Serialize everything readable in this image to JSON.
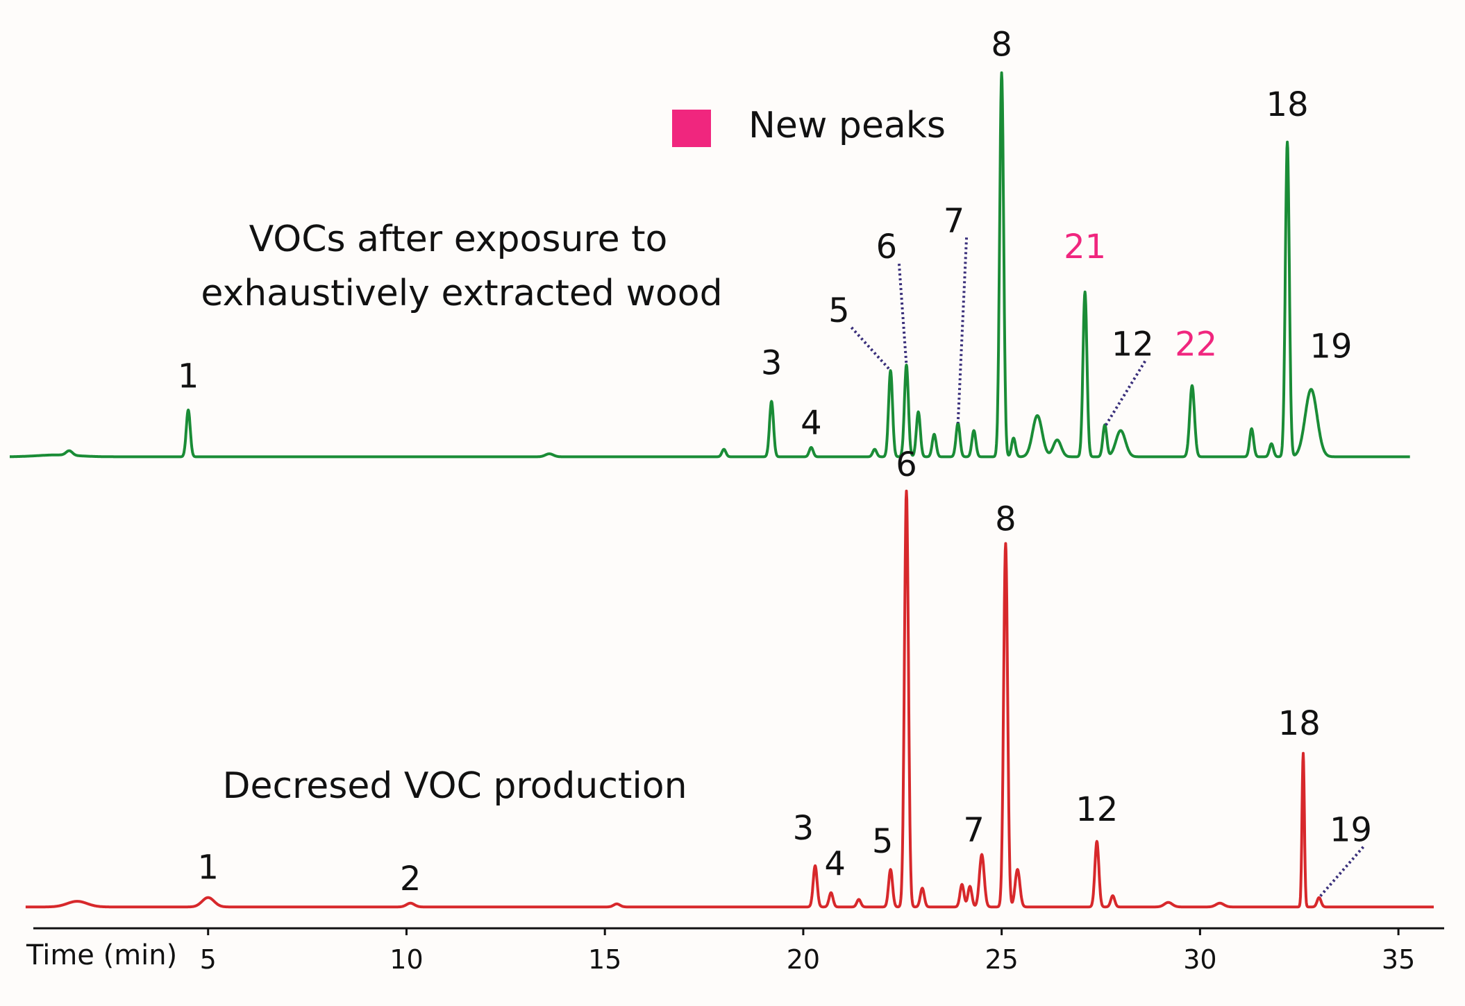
{
  "chart_data": {
    "type": "line",
    "xlabel": "Time (min)",
    "xlim": [
      0,
      36
    ],
    "x_ticks": [
      "5",
      "10",
      "15",
      "20",
      "25",
      "30",
      "35"
    ],
    "x_tick_values": [
      5,
      10,
      15,
      20,
      25,
      30,
      35
    ],
    "legend": {
      "label": "New peaks",
      "color": "#f0267e",
      "position": "top-center"
    },
    "colors": {
      "top": "#1a8c36",
      "bottom": "#d7282b",
      "new_peak": "#f0267e",
      "leader": "#3a2f7a",
      "text": "#111111"
    },
    "series": [
      {
        "name": "top",
        "title": [
          "VOCs after exposure to",
          "exhaustively extracted wood"
        ],
        "baseline": 4,
        "peaks": [
          {
            "t": 1.2,
            "h": 0.5,
            "w": 0.5
          },
          {
            "t": 1.5,
            "h": 1.2,
            "w": 0.08
          },
          {
            "t": 4.5,
            "h": 12.5,
            "w": 0.05
          },
          {
            "t": 13.6,
            "h": 0.8,
            "w": 0.1
          },
          {
            "t": 18.0,
            "h": 2.0,
            "w": 0.05
          },
          {
            "t": 19.2,
            "h": 14.8,
            "w": 0.05
          },
          {
            "t": 20.2,
            "h": 2.5,
            "w": 0.05
          },
          {
            "t": 21.8,
            "h": 2.0,
            "w": 0.05
          },
          {
            "t": 22.2,
            "h": 23.0,
            "w": 0.05
          },
          {
            "t": 22.6,
            "h": 24.5,
            "w": 0.05
          },
          {
            "t": 22.9,
            "h": 12.0,
            "w": 0.05
          },
          {
            "t": 23.3,
            "h": 6.0,
            "w": 0.05
          },
          {
            "t": 23.9,
            "h": 9.0,
            "w": 0.05
          },
          {
            "t": 24.3,
            "h": 7.0,
            "w": 0.05
          },
          {
            "t": 25.0,
            "h": 102.5,
            "w": 0.05
          },
          {
            "t": 25.3,
            "h": 5.0,
            "w": 0.05
          },
          {
            "t": 25.9,
            "h": 11.0,
            "w": 0.12
          },
          {
            "t": 26.4,
            "h": 4.5,
            "w": 0.1
          },
          {
            "t": 27.1,
            "h": 44.0,
            "w": 0.05
          },
          {
            "t": 27.6,
            "h": 8.5,
            "w": 0.05
          },
          {
            "t": 28.0,
            "h": 7.0,
            "w": 0.12
          },
          {
            "t": 29.8,
            "h": 19.0,
            "w": 0.06
          },
          {
            "t": 31.3,
            "h": 7.5,
            "w": 0.05
          },
          {
            "t": 31.8,
            "h": 3.5,
            "w": 0.05
          },
          {
            "t": 32.2,
            "h": 84.0,
            "w": 0.05
          },
          {
            "t": 32.8,
            "h": 18.0,
            "w": 0.15
          }
        ]
      },
      {
        "name": "bottom",
        "title": [
          "Decresed VOC production"
        ],
        "baseline": 2,
        "peaks": [
          {
            "t": 1.7,
            "h": 1.5,
            "w": 0.25
          },
          {
            "t": 5.0,
            "h": 2.5,
            "w": 0.15
          },
          {
            "t": 10.1,
            "h": 1.0,
            "w": 0.1
          },
          {
            "t": 15.3,
            "h": 0.8,
            "w": 0.08
          },
          {
            "t": 20.3,
            "h": 11.0,
            "w": 0.05
          },
          {
            "t": 20.7,
            "h": 3.8,
            "w": 0.05
          },
          {
            "t": 21.4,
            "h": 2.0,
            "w": 0.05
          },
          {
            "t": 22.2,
            "h": 10.0,
            "w": 0.05
          },
          {
            "t": 22.6,
            "h": 111.0,
            "w": 0.05
          },
          {
            "t": 23.0,
            "h": 5.0,
            "w": 0.05
          },
          {
            "t": 24.0,
            "h": 6.0,
            "w": 0.05
          },
          {
            "t": 24.2,
            "h": 5.5,
            "w": 0.05
          },
          {
            "t": 24.5,
            "h": 14.0,
            "w": 0.06
          },
          {
            "t": 25.1,
            "h": 97.0,
            "w": 0.05
          },
          {
            "t": 25.4,
            "h": 10.0,
            "w": 0.06
          },
          {
            "t": 27.4,
            "h": 17.5,
            "w": 0.05
          },
          {
            "t": 27.8,
            "h": 3.0,
            "w": 0.05
          },
          {
            "t": 29.2,
            "h": 1.2,
            "w": 0.1
          },
          {
            "t": 30.5,
            "h": 1.0,
            "w": 0.1
          },
          {
            "t": 32.6,
            "h": 41.0,
            "w": 0.03
          },
          {
            "t": 33.0,
            "h": 2.5,
            "w": 0.05
          }
        ]
      }
    ],
    "annotations": {
      "top": [
        {
          "label": "1",
          "t": 4.5,
          "h": 22.5,
          "new": false
        },
        {
          "label": "3",
          "t": 19.2,
          "h": 26.0,
          "new": false
        },
        {
          "label": "4",
          "t": 20.2,
          "h": 10.0,
          "new": false
        },
        {
          "label": "5",
          "t": 20.9,
          "h": 40.0,
          "new": false,
          "leader_to": {
            "t": 22.2,
            "h": 27.0
          }
        },
        {
          "label": "6",
          "t": 22.1,
          "h": 57.0,
          "new": false,
          "leader_to": {
            "t": 22.6,
            "h": 28.5
          }
        },
        {
          "label": "7",
          "t": 23.8,
          "h": 64.0,
          "new": false,
          "leader_to": {
            "t": 23.9,
            "h": 13.0
          }
        },
        {
          "label": "8",
          "t": 25.0,
          "h": 111.0,
          "new": false
        },
        {
          "label": "21",
          "t": 27.1,
          "h": 57.0,
          "new": true
        },
        {
          "label": "12",
          "t": 28.3,
          "h": 31.0,
          "new": false,
          "leader_to": {
            "t": 27.6,
            "h": 12.0
          }
        },
        {
          "label": "22",
          "t": 29.9,
          "h": 31.0,
          "new": true
        },
        {
          "label": "18",
          "t": 32.2,
          "h": 95.0,
          "new": false
        },
        {
          "label": "19",
          "t": 33.3,
          "h": 30.5,
          "new": false
        }
      ],
      "bottom": [
        {
          "label": "1",
          "t": 5.0,
          "h": 9.5,
          "new": false
        },
        {
          "label": "2",
          "t": 10.1,
          "h": 6.5,
          "new": false
        },
        {
          "label": "3",
          "t": 20.0,
          "h": 20.0,
          "new": false
        },
        {
          "label": "4",
          "t": 20.8,
          "h": 10.5,
          "new": false
        },
        {
          "label": "5",
          "t": 22.0,
          "h": 16.5,
          "new": false
        },
        {
          "label": "6",
          "t": 22.6,
          "h": 117.0,
          "new": false
        },
        {
          "label": "7",
          "t": 24.3,
          "h": 19.5,
          "new": false
        },
        {
          "label": "8",
          "t": 25.1,
          "h": 102.5,
          "new": false
        },
        {
          "label": "12",
          "t": 27.4,
          "h": 25.0,
          "new": false
        },
        {
          "label": "18",
          "t": 32.5,
          "h": 48.0,
          "new": false
        },
        {
          "label": "19",
          "t": 33.8,
          "h": 19.5,
          "new": false,
          "leader_to": {
            "t": 33.0,
            "h": 4.5
          }
        }
      ]
    }
  }
}
